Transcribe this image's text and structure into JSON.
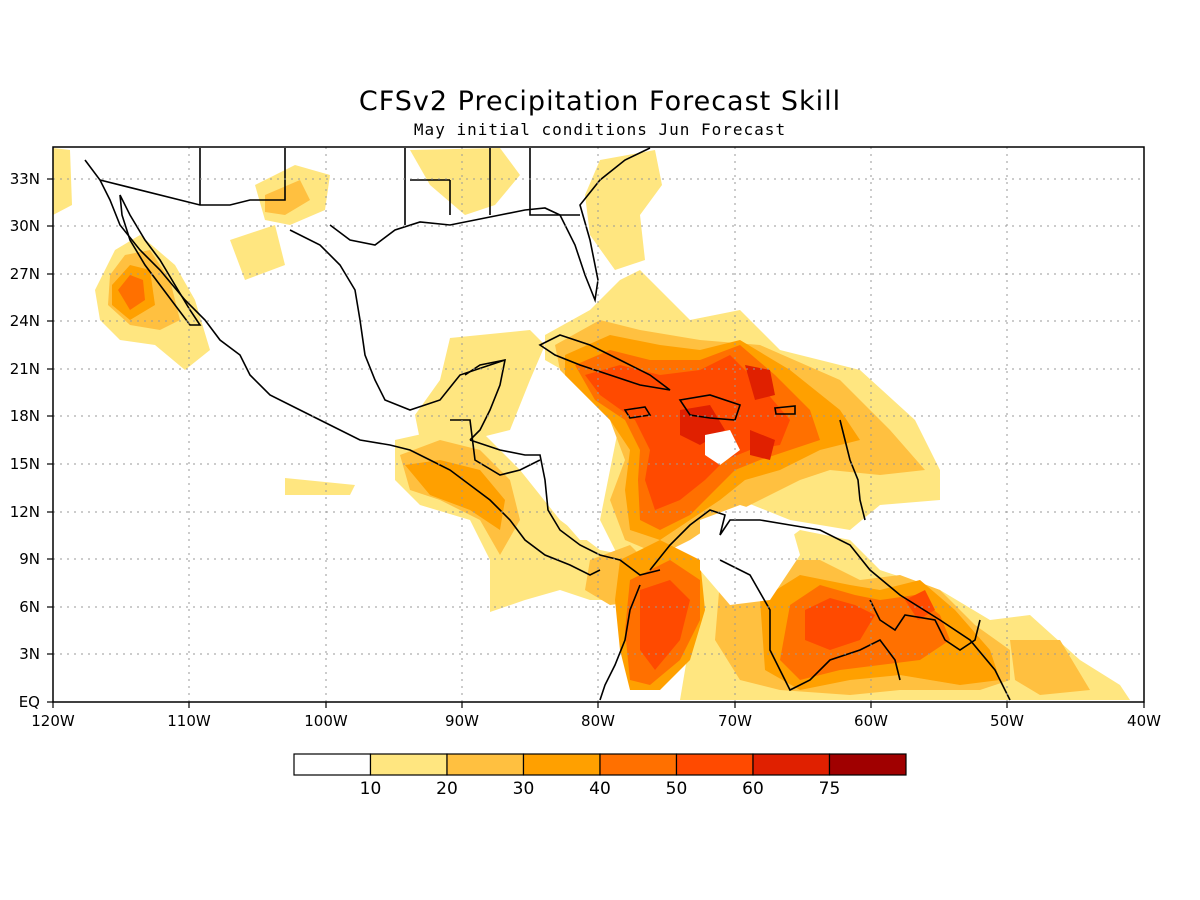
{
  "title": "CFSv2 Precipitation Forecast Skill",
  "subtitle": "May initial conditions  Jun Forecast",
  "lat_labels": [
    "33N",
    "30N",
    "27N",
    "24N",
    "21N",
    "18N",
    "15N",
    "12N",
    "9N",
    "6N",
    "3N",
    "EQ"
  ],
  "lon_labels": [
    "120W",
    "110W",
    "100W",
    "90W",
    "80W",
    "70W",
    "60W",
    "50W",
    "40W"
  ],
  "colorbar": {
    "labels": [
      "10",
      "20",
      "30",
      "40",
      "50",
      "60",
      "75"
    ],
    "colors": [
      "#ffffff",
      "#ffe680",
      "#ffc040",
      "#ffa000",
      "#ff7000",
      "#ff4a00",
      "#e02000",
      "#a00000"
    ]
  },
  "colors": {
    "land_outline": "#000000",
    "grid": "#999999"
  }
}
